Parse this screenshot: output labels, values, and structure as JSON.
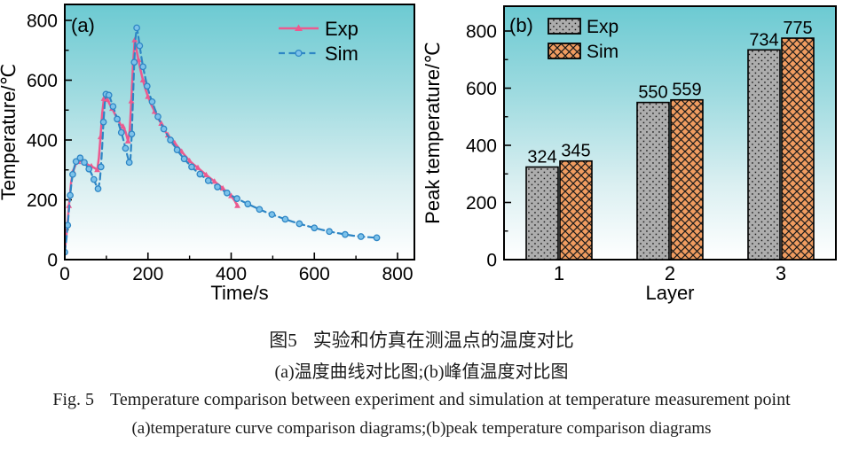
{
  "captions": {
    "zh_fig_label": "图5",
    "zh_title": "实验和仿真在测温点的温度对比",
    "zh_sub": "(a)温度曲线对比图;(b)峰值温度对比图",
    "en_fig_label": "Fig. 5",
    "en_title": "Temperature comparison between experiment and simulation at temperature measurement point",
    "en_sub": "(a)temperature curve comparison diagrams;(b)peak temperature comparison diagrams"
  },
  "colors": {
    "frame": "#000000",
    "exp_line": "#EC5A8F",
    "sim_line": "#2E86C5",
    "sim_marker_fill": "#7CC2EA",
    "exp_bar_fill": "#ADADAD",
    "sim_bar_fill": "#F09C60",
    "gradient": [
      [
        "0%",
        "#6CCAD2"
      ],
      [
        "35%",
        "#9FDBE0"
      ],
      [
        "70%",
        "#DAEFF1"
      ],
      [
        "100%",
        "#FFFFFF"
      ]
    ]
  },
  "chart_data": [
    {
      "type": "line",
      "panel_letter": "(a)",
      "xlabel": "Time/s",
      "ylabel": "Temperature/℃",
      "xlim": [
        0,
        840
      ],
      "ylim": [
        0,
        853
      ],
      "xticks_major": [
        0,
        200,
        400,
        600,
        800
      ],
      "xticks_minor": [
        100,
        300,
        500,
        700
      ],
      "yticks_major": [
        0,
        200,
        400,
        600,
        800
      ],
      "yticks_minor": [
        100,
        300,
        500,
        700
      ],
      "grid": false,
      "legend_position": "top-right-inside",
      "series": [
        {
          "name": "Exp",
          "line_style": "solid",
          "marker": "triangle",
          "color": "#EC5A8F",
          "points": [
            [
              0,
              25
            ],
            [
              5,
              95
            ],
            [
              10,
              180
            ],
            [
              15,
              255
            ],
            [
              20,
              295
            ],
            [
              26,
              318
            ],
            [
              32,
              327
            ],
            [
              40,
              331
            ],
            [
              48,
              325
            ],
            [
              56,
              317
            ],
            [
              64,
              312
            ],
            [
              72,
              306
            ],
            [
              78,
              300
            ],
            [
              82,
              340
            ],
            [
              86,
              410
            ],
            [
              90,
              490
            ],
            [
              94,
              538
            ],
            [
              97,
              545
            ],
            [
              102,
              535
            ],
            [
              108,
              520
            ],
            [
              114,
              505
            ],
            [
              120,
              488
            ],
            [
              127,
              470
            ],
            [
              134,
              452
            ],
            [
              140,
              445
            ],
            [
              146,
              428
            ],
            [
              152,
              396
            ],
            [
              156,
              430
            ],
            [
              160,
              530
            ],
            [
              164,
              650
            ],
            [
              168,
              734
            ],
            [
              172,
              705
            ],
            [
              177,
              668
            ],
            [
              182,
              635
            ],
            [
              188,
              600
            ],
            [
              194,
              570
            ],
            [
              200,
              545
            ],
            [
              208,
              518
            ],
            [
              216,
              495
            ],
            [
              224,
              472
            ],
            [
              232,
              455
            ],
            [
              240,
              432
            ],
            [
              248,
              416
            ],
            [
              256,
              402
            ],
            [
              264,
              390
            ],
            [
              272,
              377
            ],
            [
              281,
              361
            ],
            [
              290,
              347
            ],
            [
              300,
              330
            ],
            [
              310,
              318
            ],
            [
              320,
              307
            ],
            [
              330,
              295
            ],
            [
              340,
              283
            ],
            [
              350,
              272
            ],
            [
              360,
              261
            ],
            [
              370,
              250
            ],
            [
              380,
              238
            ],
            [
              390,
              226
            ],
            [
              400,
              213
            ],
            [
              408,
              198
            ],
            [
              415,
              180
            ]
          ]
        },
        {
          "name": "Sim",
          "line_style": "dashed",
          "marker": "circle",
          "color": "#2E86C5",
          "points": [
            [
              0,
              25
            ],
            [
              4,
              70
            ],
            [
              7,
              115
            ],
            [
              10,
              165
            ],
            [
              13,
              215
            ],
            [
              16,
              255
            ],
            [
              19,
              285
            ],
            [
              23,
              310
            ],
            [
              27,
              328
            ],
            [
              32,
              338
            ],
            [
              37,
              340
            ],
            [
              42,
              333
            ],
            [
              47,
              325
            ],
            [
              52,
              315
            ],
            [
              58,
              303
            ],
            [
              64,
              288
            ],
            [
              70,
              268
            ],
            [
              75,
              250
            ],
            [
              80,
              237
            ],
            [
              84,
              260
            ],
            [
              87,
              310
            ],
            [
              90,
              380
            ],
            [
              93,
              460
            ],
            [
              96,
              520
            ],
            [
              99,
              553
            ],
            [
              102,
              560
            ],
            [
              106,
              550
            ],
            [
              111,
              532
            ],
            [
              116,
              512
            ],
            [
              121,
              492
            ],
            [
              126,
              470
            ],
            [
              131,
              448
            ],
            [
              136,
              425
            ],
            [
              141,
              400
            ],
            [
              146,
              372
            ],
            [
              151,
              345
            ],
            [
              155,
              325
            ],
            [
              158,
              340
            ],
            [
              161,
              420
            ],
            [
              164,
              540
            ],
            [
              167,
              660
            ],
            [
              170,
              740
            ],
            [
              173,
              775
            ],
            [
              176,
              755
            ],
            [
              180,
              715
            ],
            [
              184,
              678
            ],
            [
              188,
              645
            ],
            [
              193,
              612
            ],
            [
              198,
              580
            ],
            [
              204,
              552
            ],
            [
              210,
              528
            ],
            [
              217,
              502
            ],
            [
              224,
              478
            ],
            [
              231,
              456
            ],
            [
              238,
              437
            ],
            [
              246,
              418
            ],
            [
              254,
              400
            ],
            [
              262,
              383
            ],
            [
              270,
              367
            ],
            [
              278,
              352
            ],
            [
              287,
              337
            ],
            [
              296,
              323
            ],
            [
              305,
              310
            ],
            [
              315,
              297
            ],
            [
              325,
              286
            ],
            [
              335,
              275
            ],
            [
              345,
              264
            ],
            [
              356,
              253
            ],
            [
              367,
              243
            ],
            [
              378,
              233
            ],
            [
              390,
              223
            ],
            [
              402,
              213
            ],
            [
              414,
              204
            ],
            [
              427,
              195
            ],
            [
              440,
              186
            ],
            [
              454,
              177
            ],
            [
              468,
              168
            ],
            [
              483,
              159
            ],
            [
              498,
              151
            ],
            [
              514,
              143
            ],
            [
              530,
              135
            ],
            [
              547,
              127
            ],
            [
              564,
              120
            ],
            [
              582,
              113
            ],
            [
              600,
              106
            ],
            [
              618,
              100
            ],
            [
              636,
              94
            ],
            [
              655,
              89
            ],
            [
              674,
              84
            ],
            [
              693,
              80
            ],
            [
              712,
              77
            ],
            [
              731,
              75
            ],
            [
              750,
              73
            ]
          ]
        }
      ]
    },
    {
      "type": "bar",
      "panel_letter": "(b)",
      "xlabel": "Layer",
      "ylabel": "Peak temperature/℃",
      "ylim": [
        0,
        887
      ],
      "yticks_major": [
        0,
        200,
        400,
        600,
        800
      ],
      "yticks_minor": [
        100,
        300,
        500,
        700
      ],
      "grid": false,
      "legend_position": "top-left-inside",
      "categories": [
        "1",
        "2",
        "3"
      ],
      "series": [
        {
          "name": "Exp",
          "pattern": "dots",
          "fill": "#ADADAD",
          "values": [
            324,
            550,
            734
          ]
        },
        {
          "name": "Sim",
          "pattern": "crosshatch",
          "fill": "#F09C60",
          "values": [
            345,
            559,
            775
          ]
        }
      ]
    }
  ]
}
